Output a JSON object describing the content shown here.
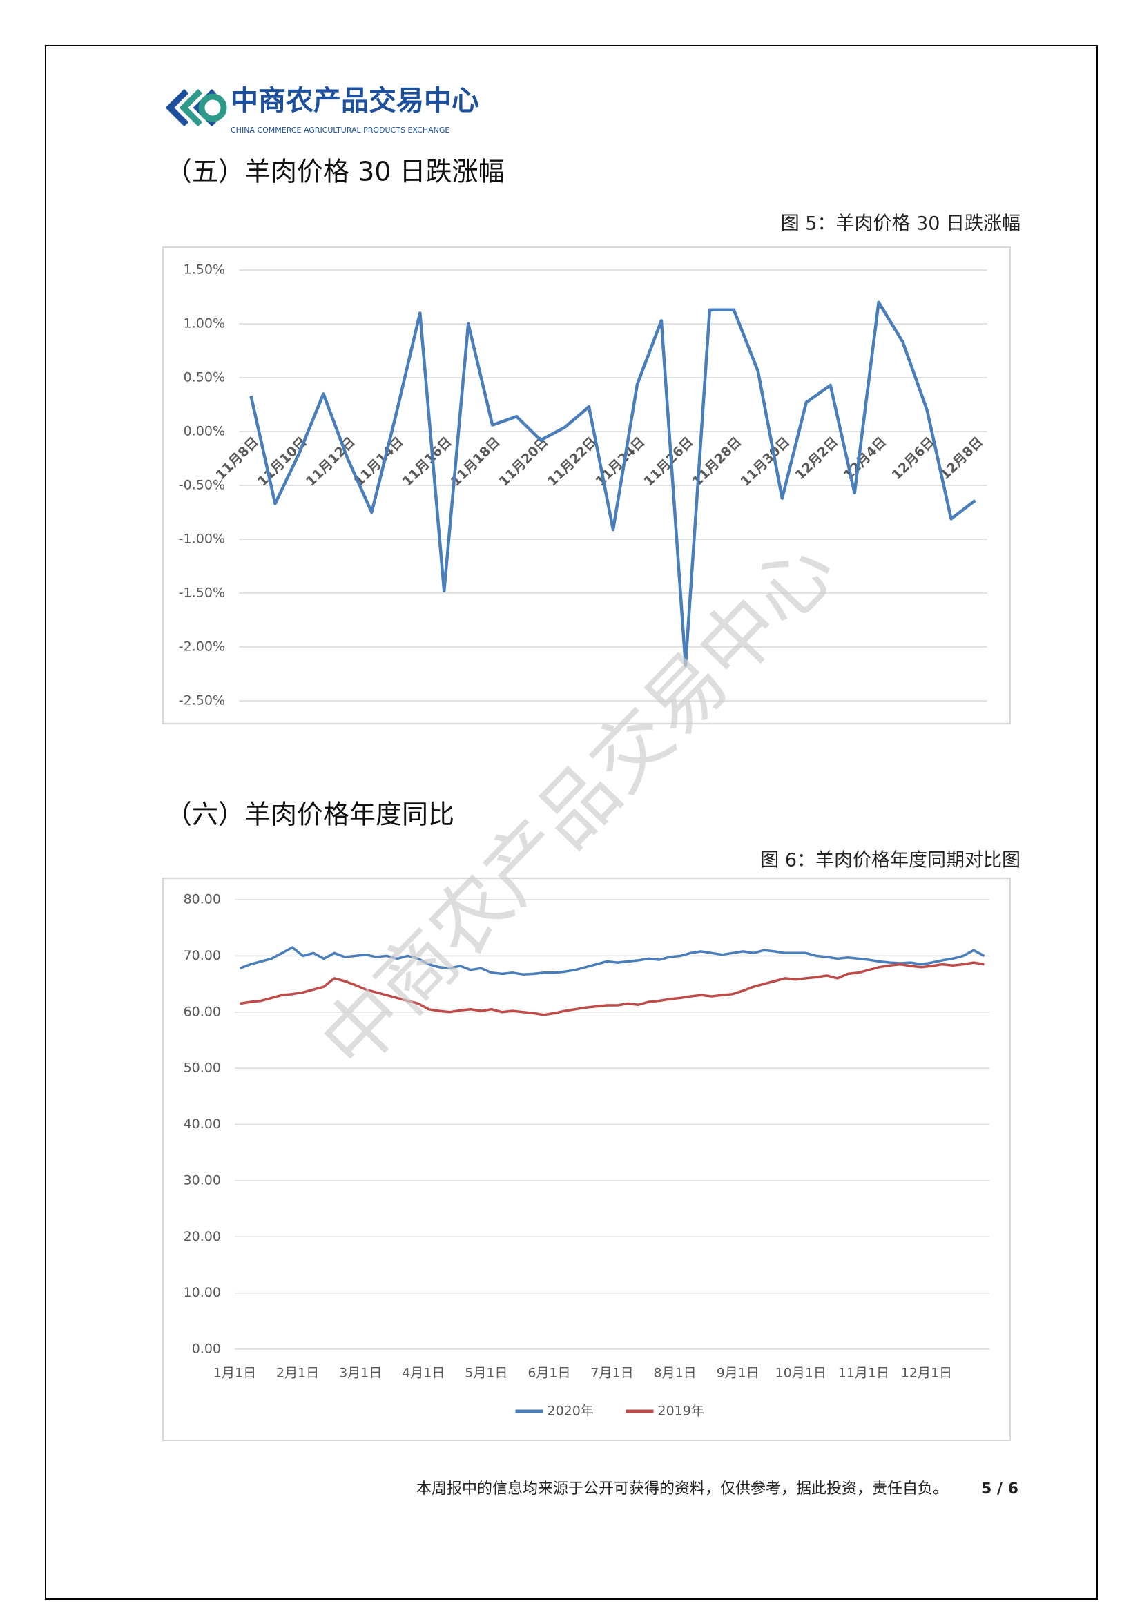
{
  "header": {
    "logo_text": "中商农产品交易中心",
    "logo_subtitle": "CHINA COMMERCE AGRICULTURAL PRODUCTS EXCHANGE"
  },
  "sections": [
    {
      "heading": "（五）羊肉价格 30 日跌涨幅",
      "caption": "图 5：羊肉价格 30 日跌涨幅"
    },
    {
      "heading": "（六）羊肉价格年度同比",
      "caption": "图 6：羊肉价格年度同期对比图"
    }
  ],
  "watermark": "中商农产品交易中心",
  "footer": {
    "disclaimer": "本周报中的信息均来源于公开可获得的资料，仅供参考，据此投资，责任自负。",
    "page": "5 / 6"
  },
  "chart_data": [
    {
      "type": "line",
      "categories": [
        "11月8日",
        null,
        "11月10日",
        null,
        "11月12日",
        null,
        "11月14日",
        null,
        "11月16日",
        null,
        "11月18日",
        null,
        "11月20日",
        null,
        "11月22日",
        null,
        "11月24日",
        null,
        "11月26日",
        null,
        "11月28日",
        null,
        "11月30日",
        null,
        "12月2日",
        null,
        "12月4日",
        null,
        "12月6日",
        null,
        "12月8日"
      ],
      "series": [
        {
          "name": null,
          "color": "#4a7ebb",
          "values": [
            0.33,
            -0.67,
            -0.2,
            0.35,
            -0.25,
            -0.75,
            0.15,
            1.1,
            -1.48,
            1.0,
            0.06,
            0.14,
            -0.08,
            0.04,
            0.23,
            -0.91,
            0.44,
            1.03,
            -2.17,
            1.13,
            1.13,
            0.56,
            -0.62,
            0.27,
            0.43,
            -0.57,
            1.2,
            0.83,
            0.2,
            -0.81,
            -0.64
          ]
        }
      ],
      "ylim": [
        -2.5,
        1.5
      ],
      "yticks": [
        {
          "value": -2.5,
          "label": "-2.50%"
        },
        {
          "value": -2.0,
          "label": "-2.00%"
        },
        {
          "value": -1.5,
          "label": "-1.50%"
        },
        {
          "value": -1.0,
          "label": "-1.00%"
        },
        {
          "value": -0.5,
          "label": "-0.50%"
        },
        {
          "value": 0,
          "label": "0.00%"
        },
        {
          "value": 0.5,
          "label": "0.50%"
        },
        {
          "value": 1.0,
          "label": "1.00%"
        },
        {
          "value": 1.5,
          "label": "1.50%"
        }
      ],
      "grid": true
    },
    {
      "type": "line",
      "categories": [
        "1月1日",
        null,
        null,
        null,
        null,
        null,
        "2月1日",
        null,
        null,
        null,
        null,
        null,
        "3月1日",
        null,
        null,
        null,
        null,
        null,
        "4月1日",
        null,
        null,
        null,
        null,
        null,
        "5月1日",
        null,
        null,
        null,
        null,
        null,
        "6月1日",
        null,
        null,
        null,
        null,
        null,
        "7月1日",
        null,
        null,
        null,
        null,
        null,
        "8月1日",
        null,
        null,
        null,
        null,
        null,
        "9月1日",
        null,
        null,
        null,
        null,
        null,
        "10月1日",
        null,
        null,
        null,
        null,
        null,
        "11月1日",
        null,
        null,
        null,
        null,
        null,
        "12月1日",
        null,
        null,
        null,
        null,
        null
      ],
      "series": [
        {
          "name": "2020年",
          "color": "#4a7ebb",
          "values": [
            67.8,
            68.5,
            69,
            69.5,
            70.5,
            71.5,
            70,
            70.5,
            69.5,
            70.5,
            69.8,
            70,
            70.2,
            69.8,
            70,
            69.5,
            70,
            69.5,
            68.5,
            68,
            67.8,
            68.2,
            67.5,
            67.8,
            67,
            66.8,
            67,
            66.7,
            66.8,
            67,
            67,
            67.2,
            67.5,
            68,
            68.5,
            69,
            68.8,
            69,
            69.2,
            69.5,
            69.3,
            69.8,
            70,
            70.5,
            70.8,
            70.5,
            70.2,
            70.5,
            70.8,
            70.5,
            71,
            70.8,
            70.5,
            70.5,
            70.5,
            70,
            69.8,
            69.5,
            69.7,
            69.5,
            69.3,
            69,
            68.8,
            68.7,
            68.8,
            68.5,
            68.8,
            69.2,
            69.5,
            70,
            71,
            70
          ]
        },
        {
          "name": "2019年",
          "color": "#be4b48",
          "values": [
            61.5,
            61.8,
            62,
            62.5,
            63,
            63.2,
            63.5,
            64,
            64.5,
            66,
            65.5,
            64.8,
            64,
            63.5,
            63,
            62.5,
            62,
            61.5,
            60.5,
            60.2,
            60,
            60.3,
            60.5,
            60.2,
            60.5,
            60,
            60.2,
            60,
            59.8,
            59.5,
            59.8,
            60.2,
            60.5,
            60.8,
            61,
            61.2,
            61.2,
            61.5,
            61.3,
            61.8,
            62,
            62.3,
            62.5,
            62.8,
            63,
            62.8,
            63,
            63.2,
            63.8,
            64.5,
            65,
            65.5,
            66,
            65.8,
            66,
            66.2,
            66.5,
            66,
            66.8,
            67,
            67.5,
            68,
            68.3,
            68.5,
            68.2,
            68,
            68.2,
            68.5,
            68.3,
            68.5,
            68.8,
            68.5
          ]
        }
      ],
      "ylim": [
        0,
        80
      ],
      "yticks": [
        {
          "value": 0,
          "label": "0.00"
        },
        {
          "value": 10,
          "label": "10.00"
        },
        {
          "value": 20,
          "label": "20.00"
        },
        {
          "value": 30,
          "label": "30.00"
        },
        {
          "value": 40,
          "label": "40.00"
        },
        {
          "value": 50,
          "label": "50.00"
        },
        {
          "value": 60,
          "label": "60.00"
        },
        {
          "value": 70,
          "label": "70.00"
        },
        {
          "value": 80,
          "label": "80.00"
        }
      ],
      "grid": true,
      "legend": "bottom"
    }
  ]
}
